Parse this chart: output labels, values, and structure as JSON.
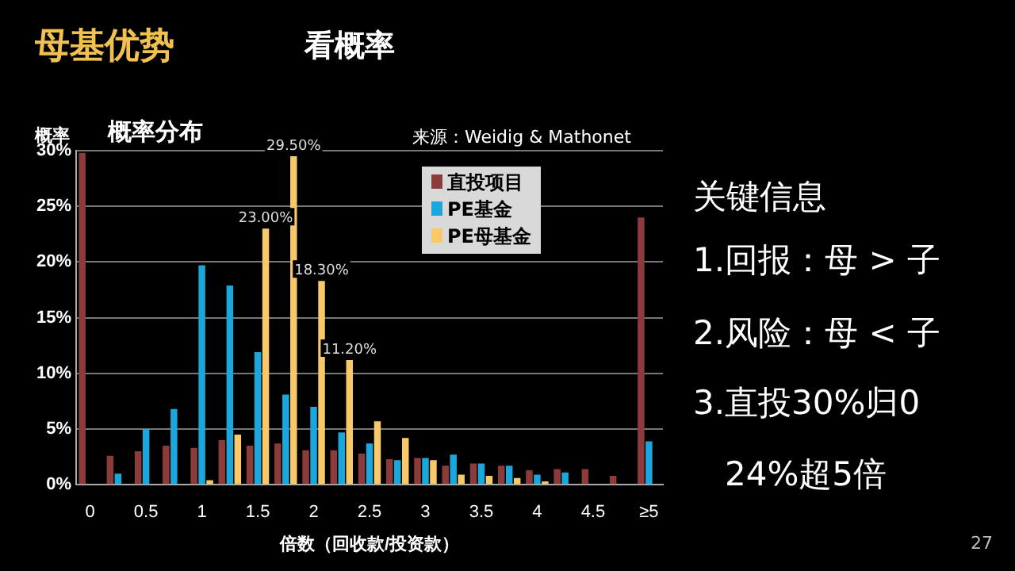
{
  "chart_data": {
    "type": "bar",
    "title": "概率分布",
    "xlabel": "倍数（回收款/投资款）",
    "ylabel": "概率",
    "categories": [
      "0",
      null,
      "0.5",
      null,
      "1",
      null,
      "1.5",
      null,
      "2",
      null,
      "2.5",
      null,
      "3",
      null,
      "3.5",
      null,
      "4",
      null,
      "4.5",
      null,
      "≥5"
    ],
    "series": [
      {
        "name": "直投项目",
        "color": "#8c3b3b",
        "values": [
          29.8,
          2.6,
          3.0,
          3.5,
          3.3,
          4.0,
          3.5,
          3.7,
          3.1,
          3.1,
          2.8,
          2.3,
          2.4,
          1.7,
          1.9,
          1.7,
          1.3,
          1.4,
          1.4,
          0.8,
          24
        ]
      },
      {
        "name": "PE基金",
        "color": "#1ba6dc",
        "values": [
          null,
          1.0,
          5.0,
          6.8,
          19.7,
          17.9,
          11.9,
          8.1,
          7.0,
          4.7,
          3.7,
          2.2,
          2.4,
          2.7,
          1.9,
          1.7,
          0.9,
          1.1,
          null,
          null,
          3.9
        ]
      },
      {
        "name": "PE母基金",
        "color": "#f7c96b",
        "values": [
          null,
          null,
          null,
          null,
          0.4,
          4.5,
          23.0,
          29.5,
          18.3,
          11.2,
          5.7,
          4.2,
          2.2,
          0.9,
          0.8,
          0.6,
          0.3,
          0,
          null,
          null,
          null
        ],
        "value_labels": [
          null,
          null,
          null,
          null,
          null,
          null,
          "23.00%",
          "29.50%",
          "18.30%",
          "11.20%",
          null,
          null,
          null,
          null,
          null,
          null,
          null,
          null,
          null,
          null,
          null
        ]
      }
    ],
    "ylim": [
      0,
      30
    ],
    "yticks": [
      {
        "value": 0,
        "label": "0%"
      },
      {
        "value": 5,
        "label": "5%"
      },
      {
        "value": 10,
        "label": "10%"
      },
      {
        "value": 15,
        "label": "15%"
      },
      {
        "value": 20,
        "label": "20%"
      },
      {
        "value": 25,
        "label": "25%"
      },
      {
        "value": 30,
        "label": "30%"
      }
    ],
    "grid": "y",
    "legend": "top",
    "annotations": [
      "母基优势",
      "看概率",
      "来源：Weidig & Mathonet",
      "关键信息",
      "1.回报：母 > 子",
      "2.风险：母 < 子",
      "3.直投30%归0",
      "24%超5倍",
      "27"
    ]
  }
}
